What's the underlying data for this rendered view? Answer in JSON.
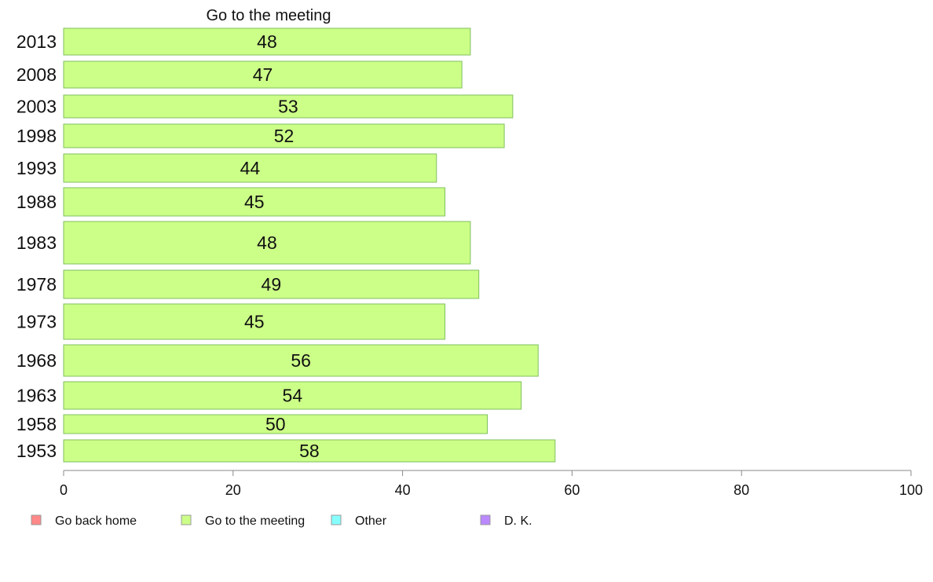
{
  "chart_data": {
    "type": "bar",
    "orientation": "horizontal",
    "title": "Go to the meeting",
    "categories": [
      "2013",
      "2008",
      "2003",
      "1998",
      "1993",
      "1988",
      "1983",
      "1978",
      "1973",
      "1968",
      "1963",
      "1958",
      "1953"
    ],
    "values": [
      48,
      47,
      53,
      52,
      44,
      45,
      48,
      49,
      45,
      56,
      54,
      50,
      58
    ],
    "xlim": [
      0,
      100
    ],
    "xticks": [
      0,
      20,
      40,
      60,
      80,
      100
    ],
    "grid": false,
    "bar_color": "#ccff88",
    "bar_border_color": "#7fbf5f",
    "legend": {
      "placement": "bottom",
      "items": [
        {
          "label": "Go back home",
          "color": "#ff8888"
        },
        {
          "label": "Go to the meeting",
          "color": "#ccff88"
        },
        {
          "label": "Other",
          "color": "#88ffff"
        },
        {
          "label": "D. K.",
          "color": "#bb88ff"
        }
      ]
    }
  }
}
